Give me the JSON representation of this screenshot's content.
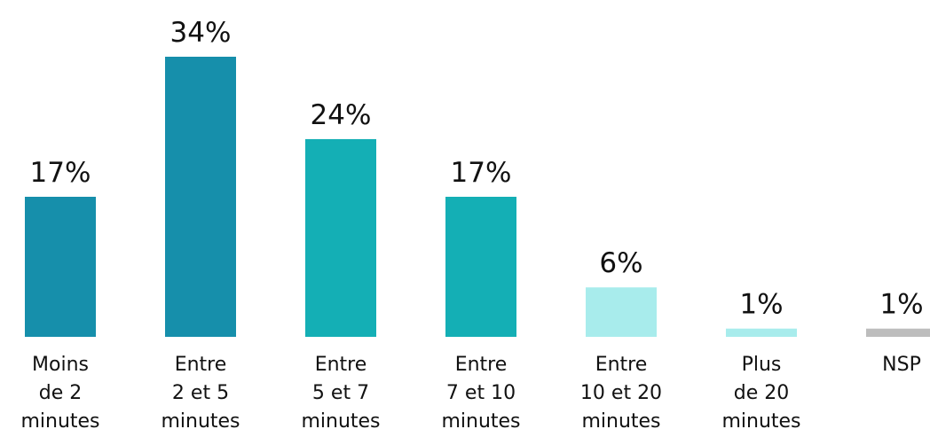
{
  "chart_data": {
    "type": "bar",
    "categories": [
      [
        "Moins",
        "de 2",
        "minutes"
      ],
      [
        "Entre",
        "2 et 5",
        "minutes"
      ],
      [
        "Entre",
        "5 et 7",
        "minutes"
      ],
      [
        "Entre",
        "7 et 10",
        "minutes"
      ],
      [
        "Entre",
        "10 et 20",
        "minutes"
      ],
      [
        "Plus",
        "de 20",
        "minutes"
      ],
      [
        "NSP"
      ]
    ],
    "values": [
      17,
      34,
      24,
      17,
      6,
      1,
      1
    ],
    "value_labels": [
      "17%",
      "34%",
      "24%",
      "17%",
      "6%",
      "1%",
      "1%"
    ],
    "bar_colors": [
      "#168fab",
      "#168fab",
      "#14afb5",
      "#14afb5",
      "#a8ecec",
      "#a8ecec",
      "#bdbdbd"
    ],
    "ylim": [
      0,
      34
    ],
    "unit": "%",
    "grid": false,
    "legend": "none"
  }
}
